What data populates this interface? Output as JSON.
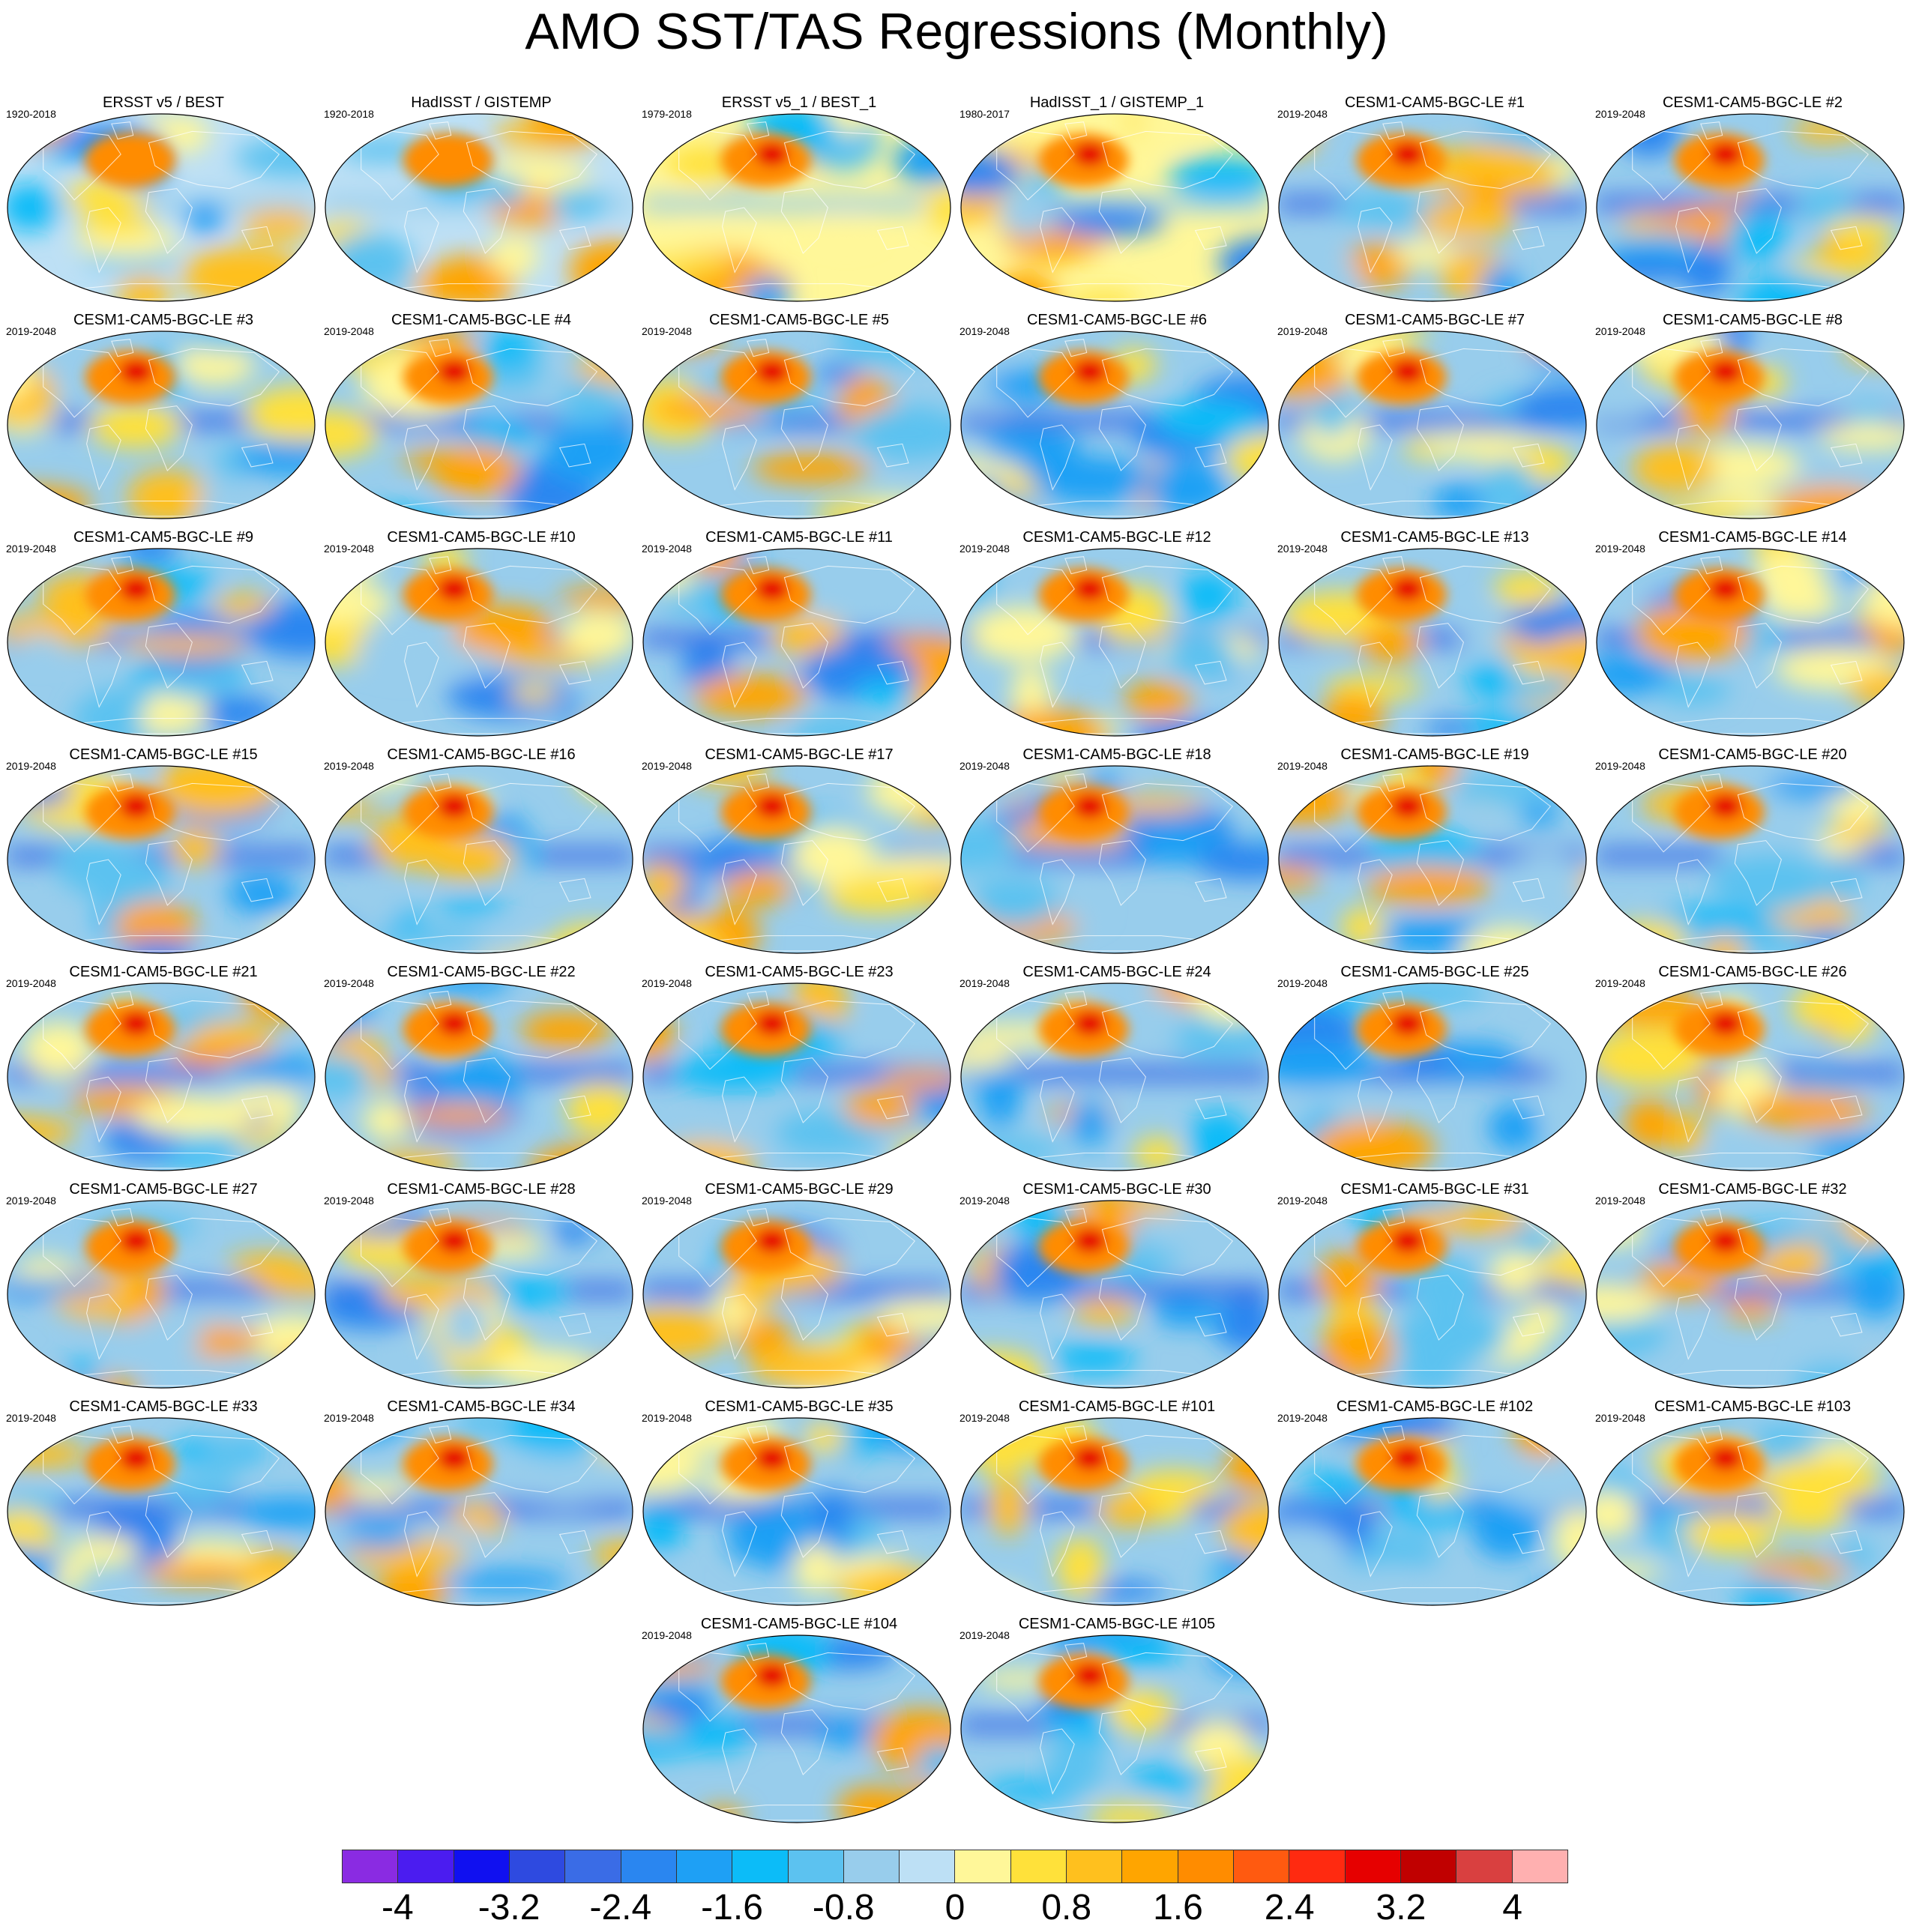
{
  "title": "AMO SST/TAS Regressions (Monthly)",
  "chart_data": {
    "type": "heatmap",
    "projection": "Robinson-like global maps (filled contours)",
    "panels": [
      {
        "label": "ERSST v5 / BEST",
        "years": "1920-2018",
        "style": "obs"
      },
      {
        "label": "HadISST / GISTEMP",
        "years": "1920-2018",
        "style": "obs"
      },
      {
        "label": "ERSST v5_1 / BEST_1",
        "years": "1979-2018",
        "style": "obs-warm"
      },
      {
        "label": "HadISST_1 / GISTEMP_1",
        "years": "1980-2017",
        "style": "obs-warm"
      },
      {
        "label": "CESM1-CAM5-BGC-LE #1",
        "years": "2019-2048",
        "style": "model"
      },
      {
        "label": "CESM1-CAM5-BGC-LE #2",
        "years": "2019-2048",
        "style": "model"
      },
      {
        "label": "CESM1-CAM5-BGC-LE #3",
        "years": "2019-2048",
        "style": "model"
      },
      {
        "label": "CESM1-CAM5-BGC-LE #4",
        "years": "2019-2048",
        "style": "model"
      },
      {
        "label": "CESM1-CAM5-BGC-LE #5",
        "years": "2019-2048",
        "style": "model"
      },
      {
        "label": "CESM1-CAM5-BGC-LE #6",
        "years": "2019-2048",
        "style": "model"
      },
      {
        "label": "CESM1-CAM5-BGC-LE #7",
        "years": "2019-2048",
        "style": "model"
      },
      {
        "label": "CESM1-CAM5-BGC-LE #8",
        "years": "2019-2048",
        "style": "model"
      },
      {
        "label": "CESM1-CAM5-BGC-LE #9",
        "years": "2019-2048",
        "style": "model"
      },
      {
        "label": "CESM1-CAM5-BGC-LE #10",
        "years": "2019-2048",
        "style": "model"
      },
      {
        "label": "CESM1-CAM5-BGC-LE #11",
        "years": "2019-2048",
        "style": "model"
      },
      {
        "label": "CESM1-CAM5-BGC-LE #12",
        "years": "2019-2048",
        "style": "model"
      },
      {
        "label": "CESM1-CAM5-BGC-LE #13",
        "years": "2019-2048",
        "style": "model"
      },
      {
        "label": "CESM1-CAM5-BGC-LE #14",
        "years": "2019-2048",
        "style": "model"
      },
      {
        "label": "CESM1-CAM5-BGC-LE #15",
        "years": "2019-2048",
        "style": "model"
      },
      {
        "label": "CESM1-CAM5-BGC-LE #16",
        "years": "2019-2048",
        "style": "model"
      },
      {
        "label": "CESM1-CAM5-BGC-LE #17",
        "years": "2019-2048",
        "style": "model"
      },
      {
        "label": "CESM1-CAM5-BGC-LE #18",
        "years": "2019-2048",
        "style": "model"
      },
      {
        "label": "CESM1-CAM5-BGC-LE #19",
        "years": "2019-2048",
        "style": "model"
      },
      {
        "label": "CESM1-CAM5-BGC-LE #20",
        "years": "2019-2048",
        "style": "model"
      },
      {
        "label": "CESM1-CAM5-BGC-LE #21",
        "years": "2019-2048",
        "style": "model"
      },
      {
        "label": "CESM1-CAM5-BGC-LE #22",
        "years": "2019-2048",
        "style": "model"
      },
      {
        "label": "CESM1-CAM5-BGC-LE #23",
        "years": "2019-2048",
        "style": "model"
      },
      {
        "label": "CESM1-CAM5-BGC-LE #24",
        "years": "2019-2048",
        "style": "model"
      },
      {
        "label": "CESM1-CAM5-BGC-LE #25",
        "years": "2019-2048",
        "style": "model"
      },
      {
        "label": "CESM1-CAM5-BGC-LE #26",
        "years": "2019-2048",
        "style": "model"
      },
      {
        "label": "CESM1-CAM5-BGC-LE #27",
        "years": "2019-2048",
        "style": "model"
      },
      {
        "label": "CESM1-CAM5-BGC-LE #28",
        "years": "2019-2048",
        "style": "model"
      },
      {
        "label": "CESM1-CAM5-BGC-LE #29",
        "years": "2019-2048",
        "style": "model"
      },
      {
        "label": "CESM1-CAM5-BGC-LE #30",
        "years": "2019-2048",
        "style": "model"
      },
      {
        "label": "CESM1-CAM5-BGC-LE #31",
        "years": "2019-2048",
        "style": "model"
      },
      {
        "label": "CESM1-CAM5-BGC-LE #32",
        "years": "2019-2048",
        "style": "model"
      },
      {
        "label": "CESM1-CAM5-BGC-LE #33",
        "years": "2019-2048",
        "style": "model"
      },
      {
        "label": "CESM1-CAM5-BGC-LE #34",
        "years": "2019-2048",
        "style": "model"
      },
      {
        "label": "CESM1-CAM5-BGC-LE #35",
        "years": "2019-2048",
        "style": "model"
      },
      {
        "label": "CESM1-CAM5-BGC-LE #101",
        "years": "2019-2048",
        "style": "model"
      },
      {
        "label": "CESM1-CAM5-BGC-LE #102",
        "years": "2019-2048",
        "style": "model"
      },
      {
        "label": "CESM1-CAM5-BGC-LE #103",
        "years": "2019-2048",
        "style": "model"
      },
      {
        "label": "CESM1-CAM5-BGC-LE #104",
        "years": "2019-2048",
        "style": "model"
      },
      {
        "label": "CESM1-CAM5-BGC-LE #105",
        "years": "2019-2048",
        "style": "model"
      }
    ],
    "colorbar": {
      "levels": [
        -4,
        -3.6,
        -3.2,
        -2.8,
        -2.4,
        -2,
        -1.6,
        -1.2,
        -0.8,
        -0.4,
        0,
        0.4,
        0.8,
        1.2,
        1.6,
        2,
        2.4,
        2.8,
        3.2,
        3.6,
        4
      ],
      "tick_labels": [
        "-4",
        "-3.2",
        "-2.4",
        "-1.6",
        "-0.8",
        "0",
        "0.8",
        "1.6",
        "2.4",
        "3.2",
        "4"
      ],
      "colors": [
        "#8a2be2",
        "#4b1cf0",
        "#1010f0",
        "#2e4ae0",
        "#3a6ce6",
        "#2a86f0",
        "#1ea0f5",
        "#0cbcf8",
        "#5cc2f0",
        "#98cdec",
        "#bde0f5",
        "#fff799",
        "#ffe13a",
        "#ffc01e",
        "#ffa500",
        "#ff8c00",
        "#ff5a10",
        "#ff2a10",
        "#e60000",
        "#c00000",
        "#d94040",
        "#ffb0b0"
      ]
    }
  }
}
